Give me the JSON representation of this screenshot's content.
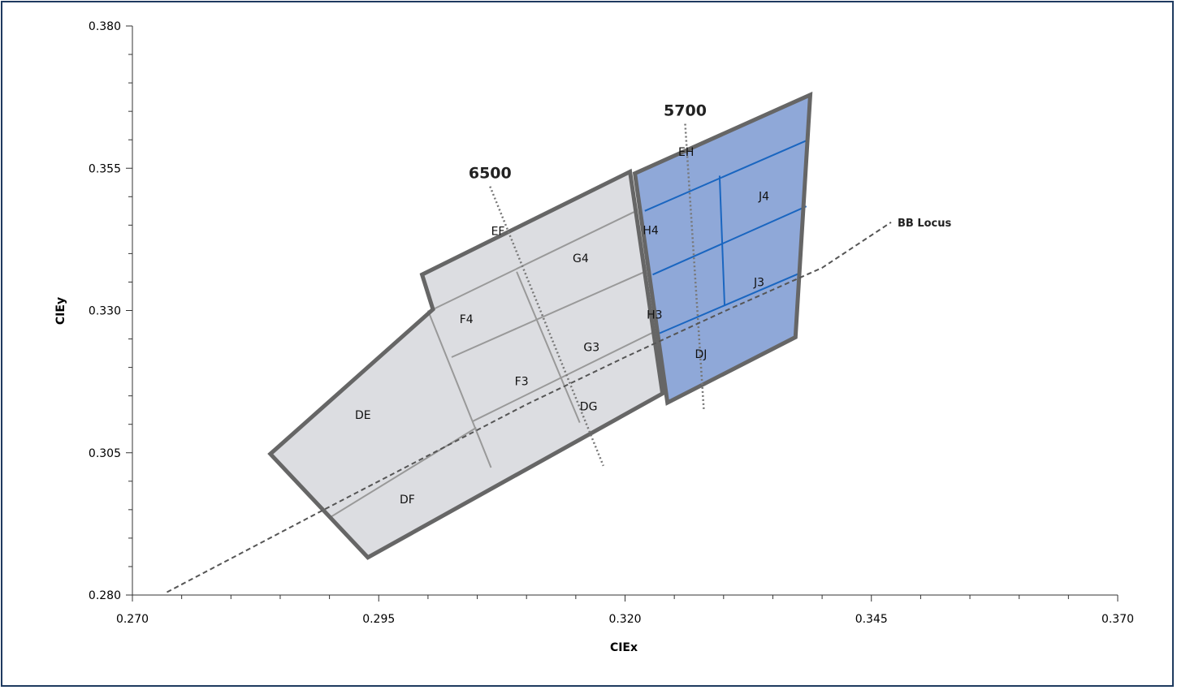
{
  "chart_data": {
    "type": "scatter",
    "xlabel": "CIEx",
    "ylabel": "CIEy",
    "xlim": [
      0.27,
      0.37
    ],
    "ylim": [
      0.28,
      0.38
    ],
    "xticks": [
      "0.270",
      "0.295",
      "0.320",
      "0.345",
      "0.370"
    ],
    "yticks": [
      "0.280",
      "0.305",
      "0.330",
      "0.355",
      "0.380"
    ],
    "x_tick_values": [
      0.27,
      0.295,
      0.32,
      0.345,
      0.37
    ],
    "y_tick_values": [
      0.28,
      0.305,
      0.33,
      0.355,
      0.38
    ],
    "grid": false,
    "colors": {
      "gray_region_fill": "#dcdde1",
      "blue_region_fill": "#8fa8d8",
      "outline": "#666666",
      "gray_grid_line": "#999999",
      "blue_grid_line": "#1a66c0",
      "locus_line": "#555555",
      "isotherm_line": "#777777"
    },
    "bb_locus": {
      "label": "BB Locus",
      "points": [
        [
          0.2735,
          0.2805
        ],
        [
          0.29,
          0.2955
        ],
        [
          0.3,
          0.3045
        ],
        [
          0.31,
          0.3135
        ],
        [
          0.32,
          0.3218
        ],
        [
          0.33,
          0.3298
        ],
        [
          0.34,
          0.3375
        ],
        [
          0.347,
          0.3455
        ]
      ]
    },
    "isotherms": [
      {
        "label": "6500",
        "points": [
          [
            0.3063,
            0.3518
          ],
          [
            0.3178,
            0.3027
          ]
        ]
      },
      {
        "label": "5700",
        "points": [
          [
            0.3261,
            0.3628
          ],
          [
            0.328,
            0.3125
          ]
        ]
      }
    ],
    "outer_outlines": [
      {
        "name": "gray",
        "points": [
          [
            0.2994,
            0.3363
          ],
          [
            0.3205,
            0.3544
          ],
          [
            0.3238,
            0.3154
          ],
          [
            0.2939,
            0.2866
          ],
          [
            0.284,
            0.3048
          ],
          [
            0.3005,
            0.3302
          ]
        ]
      },
      {
        "name": "blue",
        "points": [
          [
            0.321,
            0.3541
          ],
          [
            0.3388,
            0.3679
          ],
          [
            0.3373,
            0.3253
          ],
          [
            0.3243,
            0.3138
          ]
        ]
      }
    ],
    "grid_lines": [
      {
        "group": "gray",
        "points": [
          [
            0.3005,
            0.3302
          ],
          [
            0.3209,
            0.3473
          ]
        ]
      },
      {
        "group": "gray",
        "points": [
          [
            0.3024,
            0.3218
          ],
          [
            0.322,
            0.3368
          ]
        ]
      },
      {
        "group": "gray",
        "points": [
          [
            0.3045,
            0.3105
          ],
          [
            0.3229,
            0.3262
          ]
        ]
      },
      {
        "group": "gray",
        "points": [
          [
            0.2902,
            0.2938
          ],
          [
            0.3049,
            0.3094
          ]
        ]
      },
      {
        "group": "gray",
        "points": [
          [
            0.3,
            0.33
          ],
          [
            0.3064,
            0.3024
          ]
        ]
      },
      {
        "group": "gray",
        "points": [
          [
            0.309,
            0.3368
          ],
          [
            0.3154,
            0.3103
          ]
        ]
      },
      {
        "group": "blue",
        "points": [
          [
            0.322,
            0.3475
          ],
          [
            0.3386,
            0.36
          ]
        ]
      },
      {
        "group": "blue",
        "points": [
          [
            0.3228,
            0.3363
          ],
          [
            0.3384,
            0.3483
          ]
        ]
      },
      {
        "group": "blue",
        "points": [
          [
            0.3235,
            0.326
          ],
          [
            0.3378,
            0.3366
          ]
        ]
      },
      {
        "group": "blue",
        "points": [
          [
            0.3296,
            0.3537
          ],
          [
            0.3301,
            0.331
          ]
        ]
      }
    ],
    "bins": [
      {
        "label": "EF",
        "x": 0.3071,
        "y": 0.344
      },
      {
        "label": "G4",
        "x": 0.3155,
        "y": 0.3392
      },
      {
        "label": "F4",
        "x": 0.3039,
        "y": 0.3285
      },
      {
        "label": "G3",
        "x": 0.3166,
        "y": 0.3236
      },
      {
        "label": "F3",
        "x": 0.3095,
        "y": 0.3176
      },
      {
        "label": "DG",
        "x": 0.3163,
        "y": 0.3132
      },
      {
        "label": "DE",
        "x": 0.2934,
        "y": 0.3117
      },
      {
        "label": "DF",
        "x": 0.2979,
        "y": 0.2968
      },
      {
        "label": "EH",
        "x": 0.3262,
        "y": 0.3579
      },
      {
        "label": "J4",
        "x": 0.3341,
        "y": 0.3501
      },
      {
        "label": "H4",
        "x": 0.3226,
        "y": 0.3441
      },
      {
        "label": "J3",
        "x": 0.3336,
        "y": 0.335
      },
      {
        "label": "H3",
        "x": 0.323,
        "y": 0.3293
      },
      {
        "label": "DJ",
        "x": 0.3277,
        "y": 0.3224
      }
    ]
  }
}
